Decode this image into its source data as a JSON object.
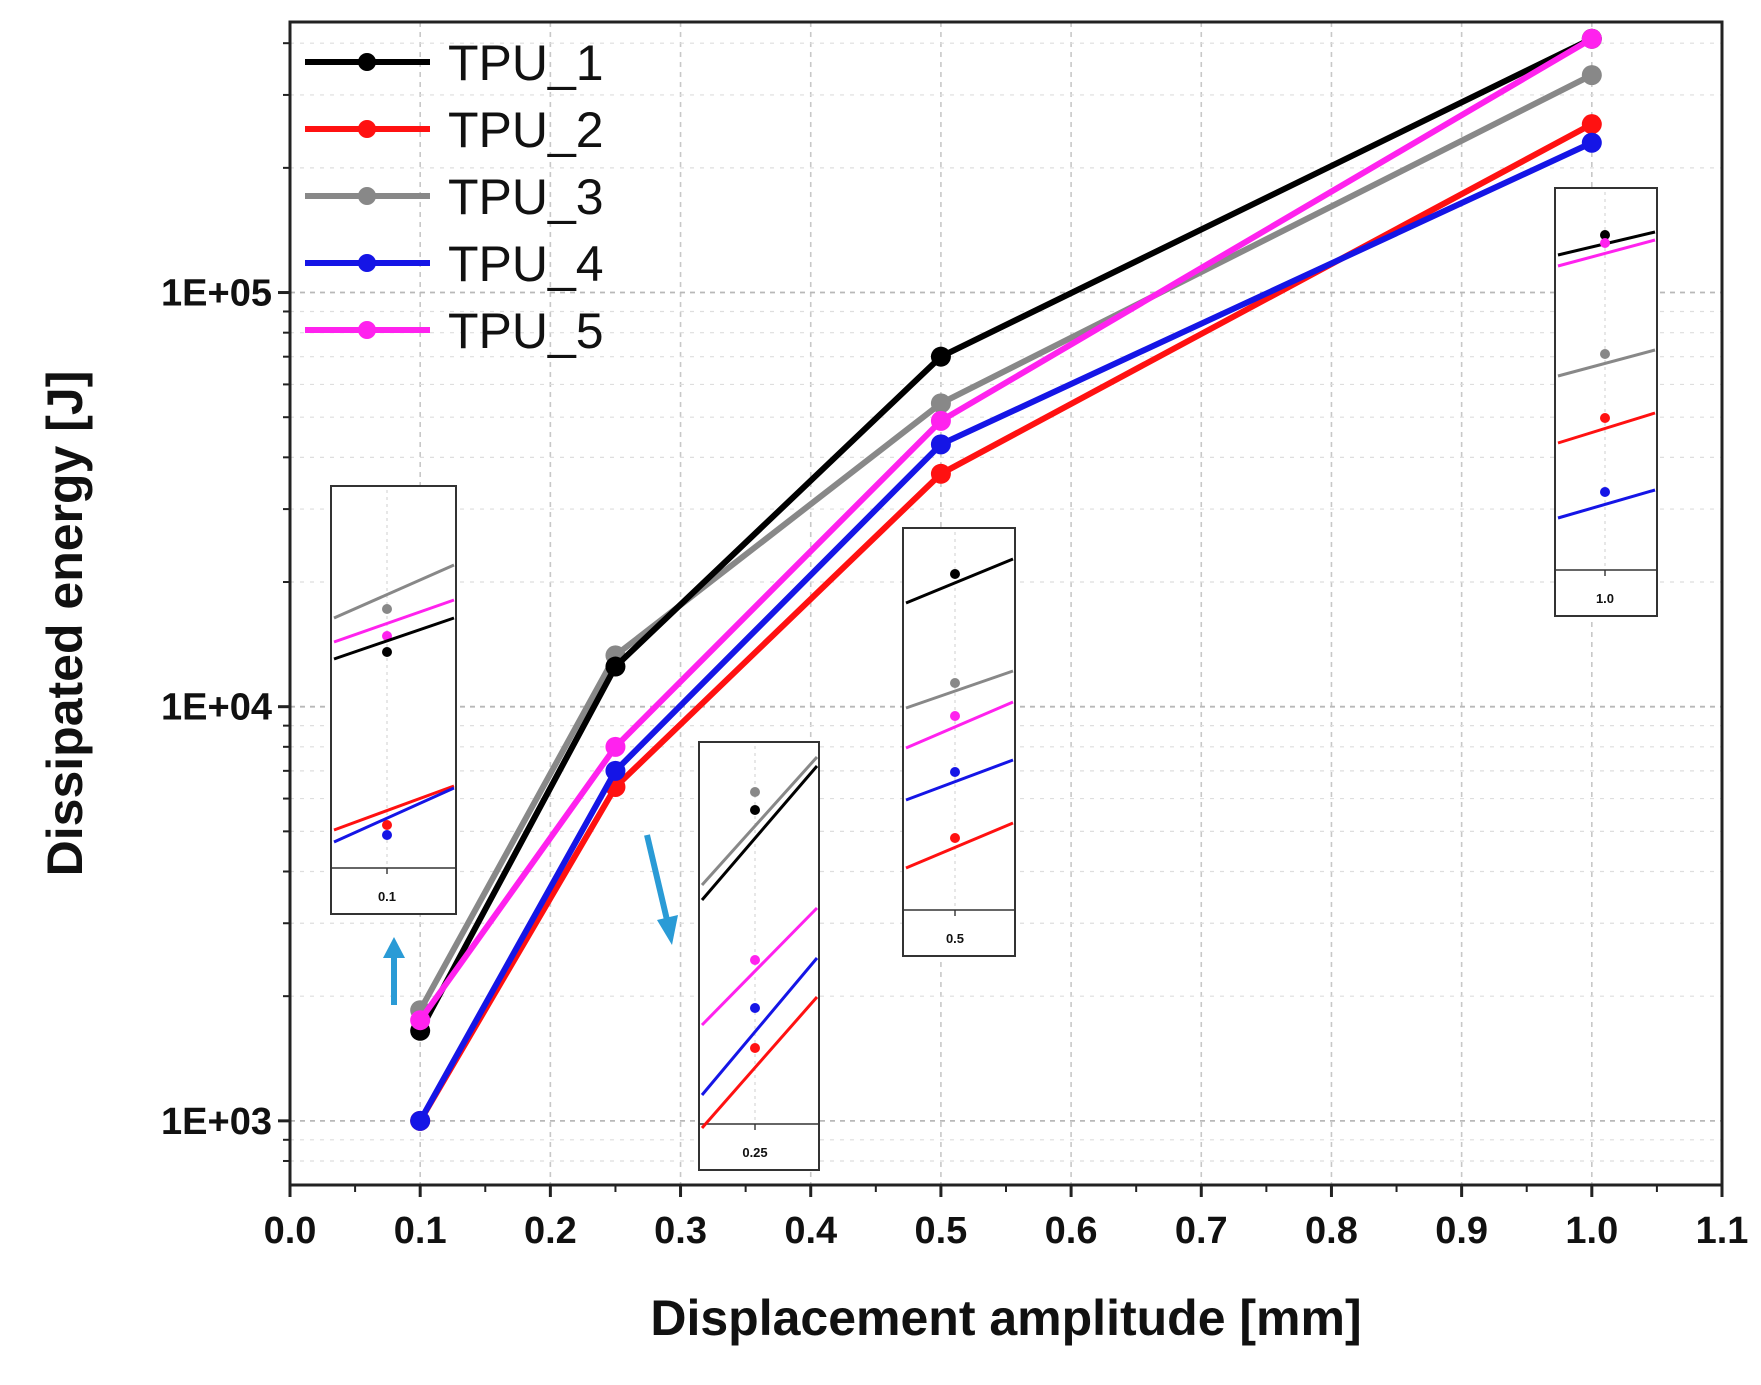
{
  "chart_data": {
    "type": "line",
    "xlabel": "Displacement amplitude [mm]",
    "ylabel": "Dissipated energy [J]",
    "xlim": [
      0.0,
      1.1
    ],
    "ylim": [
      700,
      450000
    ],
    "yscale": "log",
    "grid": true,
    "legend_position": "top-left",
    "x_ticks": [
      "0.0",
      "0.1",
      "0.2",
      "0.3",
      "0.4",
      "0.5",
      "0.6",
      "0.7",
      "0.8",
      "0.9",
      "1.0",
      "1.1"
    ],
    "y_ticks": [
      "1E+03",
      "1E+04",
      "1E+05"
    ],
    "x": [
      0.1,
      0.25,
      0.5,
      1.0
    ],
    "series": [
      {
        "name": "TPU_1",
        "color": "#000000",
        "values": [
          1650,
          12500,
          70000,
          410000
        ]
      },
      {
        "name": "TPU_2",
        "color": "#ff1111",
        "values": [
          1000,
          6400,
          36500,
          255000
        ]
      },
      {
        "name": "TPU_3",
        "color": "#888888",
        "values": [
          1850,
          13300,
          54000,
          335000
        ]
      },
      {
        "name": "TPU_4",
        "color": "#1515e6",
        "values": [
          1000,
          7000,
          43000,
          230000
        ]
      },
      {
        "name": "TPU_5",
        "color": "#ff22ee",
        "values": [
          1750,
          8000,
          49000,
          410000
        ]
      }
    ],
    "insets": [
      {
        "label": "0.1",
        "arrow": "up"
      },
      {
        "label": "0.25",
        "arrow": "down-right"
      },
      {
        "label": "0.5",
        "arrow": "none"
      },
      {
        "label": "1.0",
        "arrow": "none"
      }
    ],
    "arrow_color": "#2a9bd6"
  }
}
